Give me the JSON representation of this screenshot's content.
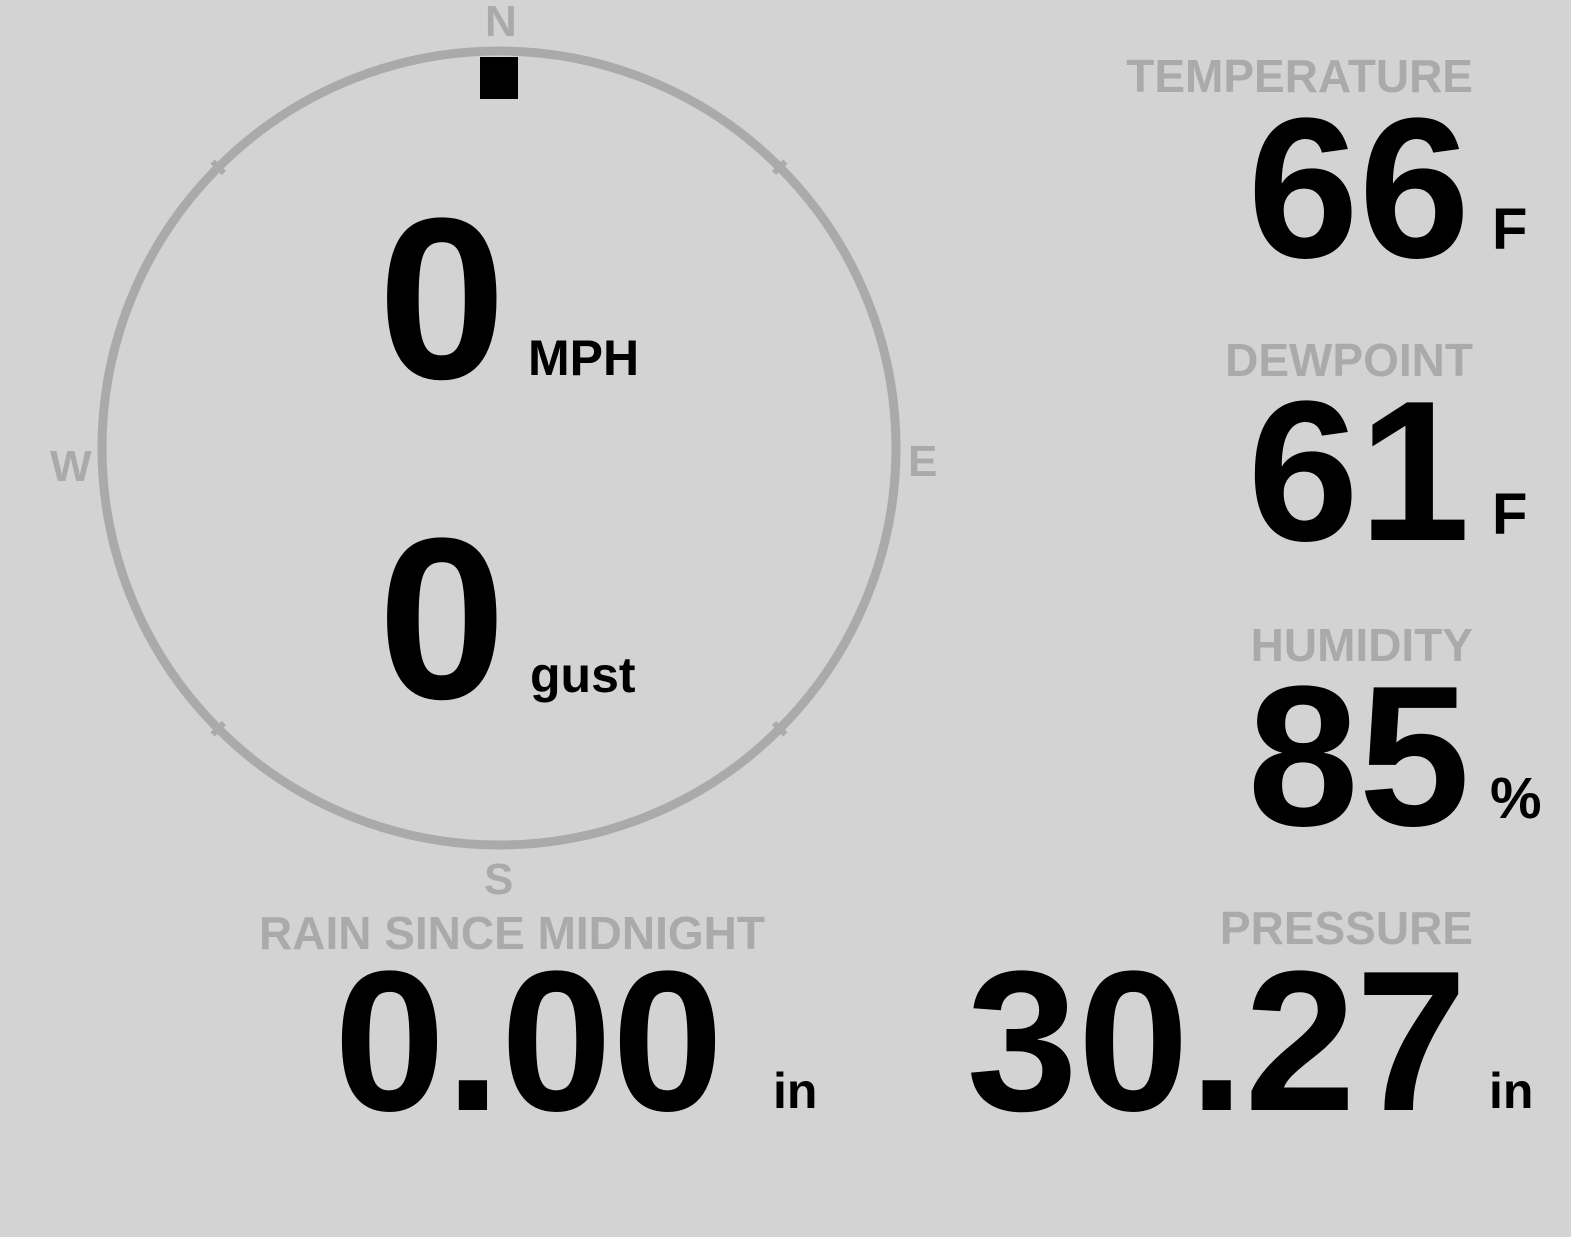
{
  "wind": {
    "compass": {
      "north": "N",
      "east": "E",
      "south": "S",
      "west": "W"
    },
    "direction_deg": 0,
    "speed": "0",
    "speed_unit": "MPH",
    "gust": "0",
    "gust_unit": "gust"
  },
  "temperature": {
    "label": "TEMPERATURE",
    "value": "66",
    "unit": "F"
  },
  "dewpoint": {
    "label": "DEWPOINT",
    "value": "61",
    "unit": "F"
  },
  "humidity": {
    "label": "HUMIDITY",
    "value": "85",
    "unit": "%"
  },
  "rain": {
    "label": "RAIN SINCE MIDNIGHT",
    "value": "0.00",
    "unit": "in"
  },
  "pressure": {
    "label": "PRESSURE",
    "value": "30.27",
    "unit": "in"
  },
  "colors": {
    "background": "#d3d3d3",
    "label": "#aaaaaa",
    "value": "#000000"
  }
}
